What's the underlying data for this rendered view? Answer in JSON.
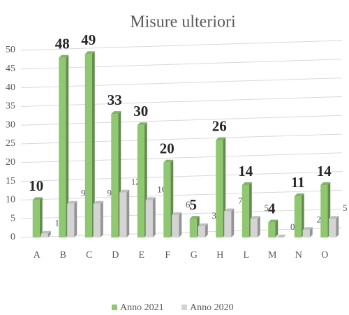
{
  "chart_data": {
    "type": "bar",
    "title": "Misure ulteriori",
    "categories": [
      "A",
      "B",
      "C",
      "D",
      "E",
      "F",
      "G",
      "H",
      "L",
      "M",
      "N",
      "O"
    ],
    "series": [
      {
        "name": "Anno 2021",
        "color": "#8fc870",
        "values": [
          10,
          48,
          49,
          33,
          30,
          20,
          5,
          26,
          14,
          4,
          11,
          14
        ]
      },
      {
        "name": "Anno 2020",
        "color": "#d4d4d4",
        "values": [
          1,
          9,
          9,
          12,
          10,
          6,
          3,
          7,
          5,
          0,
          2,
          5
        ]
      }
    ],
    "ylim": [
      0,
      50
    ],
    "yticks": [
      0,
      5,
      10,
      15,
      20,
      25,
      30,
      35,
      40,
      45,
      50
    ],
    "grid": true,
    "legend": "bottom"
  }
}
